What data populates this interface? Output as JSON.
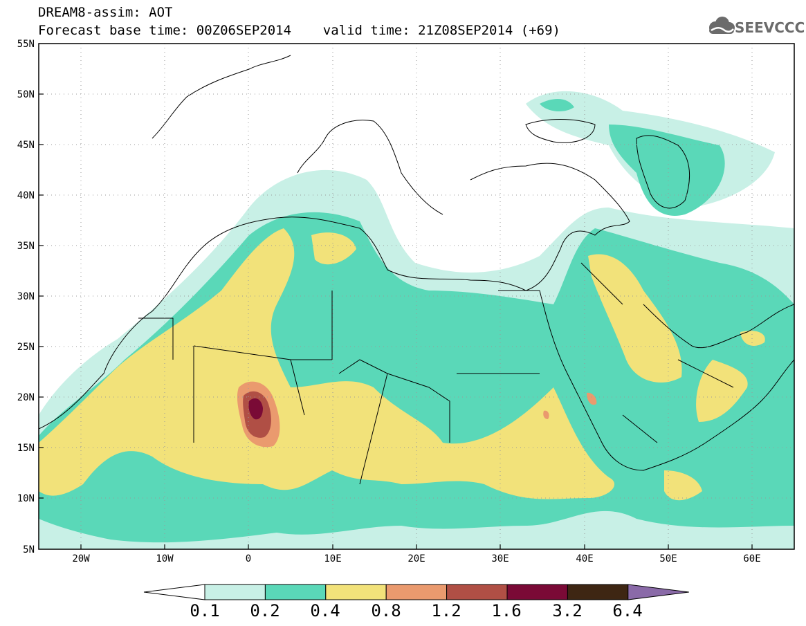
{
  "header": {
    "line1": "DREAM8-assim: AOT",
    "line2": "Forecast base time: 00Z06SEP2014    valid time: 21Z08SEP2014 (+69)"
  },
  "logo": {
    "text": "SEEVCCC",
    "icon": "cloud-icon"
  },
  "map": {
    "lat_labels": [
      "55N",
      "50N",
      "45N",
      "40N",
      "35N",
      "30N",
      "25N",
      "20N",
      "15N",
      "10N",
      "5N"
    ],
    "lon_labels": [
      "20W",
      "10W",
      "0",
      "10E",
      "20E",
      "30E",
      "40E",
      "50E",
      "60E"
    ],
    "lat_range": [
      5,
      55
    ],
    "lon_range": [
      -25,
      65
    ],
    "gridlines": "dotted"
  },
  "legend": {
    "levels": [
      "0.1",
      "0.2",
      "0.4",
      "0.8",
      "1.2",
      "1.6",
      "3.2",
      "6.4"
    ],
    "colors": [
      "#ffffff",
      "#c8f0e6",
      "#5ad8b8",
      "#f2e27a",
      "#ea9a6e",
      "#b04f45",
      "#7a0a36",
      "#3e2613",
      "#8a6aa8"
    ]
  }
}
